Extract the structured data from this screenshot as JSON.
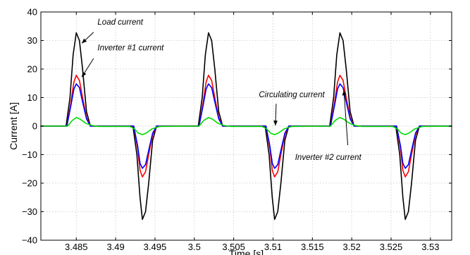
{
  "chart_data": {
    "type": "line",
    "xlabel": "Time [s]",
    "ylabel": "Current [A]",
    "xlim": [
      3.4805,
      3.5327
    ],
    "ylim": [
      -40,
      40
    ],
    "grid": true,
    "x_ticks": [
      3.485,
      3.49,
      3.495,
      3.5,
      3.505,
      3.51,
      3.515,
      3.52,
      3.525,
      3.53
    ],
    "x_tick_labels": [
      "3.485",
      "3.49",
      "3.495",
      "3.5",
      "3.505",
      "3.51",
      "3.515",
      "3.52",
      "3.525",
      "3.53"
    ],
    "y_ticks": [
      -40,
      -30,
      -20,
      -10,
      0,
      10,
      20,
      30,
      40
    ],
    "y_tick_labels": [
      "−40",
      "−30",
      "−20",
      "−10",
      "0",
      "10",
      "20",
      "30",
      "40"
    ],
    "series": [
      {
        "color": "#000000",
        "points": [
          [
            3.4805,
            0
          ],
          [
            3.4837,
            0
          ],
          [
            3.4842,
            10
          ],
          [
            3.4846,
            25
          ],
          [
            3.485,
            32.7
          ],
          [
            3.4854,
            30
          ],
          [
            3.4858,
            20
          ],
          [
            3.4863,
            5
          ],
          [
            3.4868,
            0
          ],
          [
            3.4922,
            0
          ],
          [
            3.4927,
            -10
          ],
          [
            3.4931,
            -25
          ],
          [
            3.4934,
            -32.7
          ],
          [
            3.4938,
            -30
          ],
          [
            3.4942,
            -20
          ],
          [
            3.4947,
            -5
          ],
          [
            3.4952,
            0
          ],
          [
            3.5005,
            0
          ],
          [
            3.501,
            10
          ],
          [
            3.5014,
            25
          ],
          [
            3.5018,
            32.7
          ],
          [
            3.5022,
            30
          ],
          [
            3.5026,
            20
          ],
          [
            3.5031,
            5
          ],
          [
            3.5036,
            0
          ],
          [
            3.509,
            0
          ],
          [
            3.5095,
            -10
          ],
          [
            3.5099,
            -25
          ],
          [
            3.5102,
            -32.7
          ],
          [
            3.5106,
            -30
          ],
          [
            3.511,
            -20
          ],
          [
            3.5115,
            -5
          ],
          [
            3.512,
            0
          ],
          [
            3.5172,
            0
          ],
          [
            3.5177,
            10
          ],
          [
            3.5181,
            25
          ],
          [
            3.5185,
            32.7
          ],
          [
            3.5189,
            30
          ],
          [
            3.5193,
            20
          ],
          [
            3.5198,
            5
          ],
          [
            3.5203,
            0
          ],
          [
            3.5256,
            0
          ],
          [
            3.5261,
            -10
          ],
          [
            3.5265,
            -25
          ],
          [
            3.5268,
            -32.7
          ],
          [
            3.5272,
            -30
          ],
          [
            3.5276,
            -20
          ],
          [
            3.5281,
            -5
          ],
          [
            3.5286,
            0
          ],
          [
            3.5327,
            0
          ]
        ]
      },
      {
        "color": "#ff0000",
        "points": [
          [
            3.4805,
            0
          ],
          [
            3.4838,
            0
          ],
          [
            3.4843,
            8
          ],
          [
            3.4847,
            15.5
          ],
          [
            3.485,
            17.8
          ],
          [
            3.4854,
            16
          ],
          [
            3.4858,
            10
          ],
          [
            3.4863,
            3
          ],
          [
            3.4868,
            0
          ],
          [
            3.4923,
            0
          ],
          [
            3.4928,
            -8
          ],
          [
            3.4931,
            -15.5
          ],
          [
            3.4934,
            -17.8
          ],
          [
            3.4938,
            -16
          ],
          [
            3.4942,
            -10
          ],
          [
            3.4947,
            -3
          ],
          [
            3.4952,
            0
          ],
          [
            3.5006,
            0
          ],
          [
            3.5011,
            8
          ],
          [
            3.5015,
            15.5
          ],
          [
            3.5018,
            17.8
          ],
          [
            3.5022,
            16
          ],
          [
            3.5026,
            10
          ],
          [
            3.5031,
            3
          ],
          [
            3.5036,
            0
          ],
          [
            3.5091,
            0
          ],
          [
            3.5096,
            -8
          ],
          [
            3.5099,
            -15.5
          ],
          [
            3.5102,
            -17.8
          ],
          [
            3.5106,
            -16
          ],
          [
            3.511,
            -10
          ],
          [
            3.5115,
            -3
          ],
          [
            3.512,
            0
          ],
          [
            3.5173,
            0
          ],
          [
            3.5178,
            8
          ],
          [
            3.5182,
            15.5
          ],
          [
            3.5185,
            17.8
          ],
          [
            3.5189,
            16
          ],
          [
            3.5193,
            10
          ],
          [
            3.5198,
            3
          ],
          [
            3.5203,
            0
          ],
          [
            3.5257,
            0
          ],
          [
            3.5262,
            -8
          ],
          [
            3.5265,
            -15.5
          ],
          [
            3.5268,
            -17.8
          ],
          [
            3.5272,
            -16
          ],
          [
            3.5276,
            -10
          ],
          [
            3.5281,
            -3
          ],
          [
            3.5286,
            0
          ],
          [
            3.5327,
            0
          ]
        ]
      },
      {
        "color": "#0000ff",
        "points": [
          [
            3.4805,
            0
          ],
          [
            3.4838,
            0
          ],
          [
            3.4843,
            7
          ],
          [
            3.4847,
            13
          ],
          [
            3.485,
            14.8
          ],
          [
            3.4854,
            13.5
          ],
          [
            3.4858,
            8.5
          ],
          [
            3.4863,
            2.5
          ],
          [
            3.4868,
            0
          ],
          [
            3.4923,
            0
          ],
          [
            3.4928,
            -7
          ],
          [
            3.4931,
            -13
          ],
          [
            3.4934,
            -14.8
          ],
          [
            3.4938,
            -13.5
          ],
          [
            3.4942,
            -8.5
          ],
          [
            3.4947,
            -2.5
          ],
          [
            3.4952,
            0
          ],
          [
            3.5006,
            0
          ],
          [
            3.5011,
            7
          ],
          [
            3.5015,
            13
          ],
          [
            3.5018,
            14.8
          ],
          [
            3.5022,
            13.5
          ],
          [
            3.5026,
            8.5
          ],
          [
            3.5031,
            2.5
          ],
          [
            3.5036,
            0
          ],
          [
            3.5091,
            0
          ],
          [
            3.5096,
            -7
          ],
          [
            3.5099,
            -13
          ],
          [
            3.5102,
            -14.8
          ],
          [
            3.5106,
            -13.5
          ],
          [
            3.511,
            -8.5
          ],
          [
            3.5115,
            -2.5
          ],
          [
            3.512,
            0
          ],
          [
            3.5173,
            0
          ],
          [
            3.5178,
            7
          ],
          [
            3.5182,
            13
          ],
          [
            3.5185,
            14.8
          ],
          [
            3.5189,
            13.5
          ],
          [
            3.5193,
            8.5
          ],
          [
            3.5198,
            2.5
          ],
          [
            3.5203,
            0
          ],
          [
            3.5257,
            0
          ],
          [
            3.5262,
            -7
          ],
          [
            3.5265,
            -13
          ],
          [
            3.5268,
            -14.8
          ],
          [
            3.5272,
            -13.5
          ],
          [
            3.5276,
            -8.5
          ],
          [
            3.5281,
            -2.5
          ],
          [
            3.5286,
            0
          ],
          [
            3.5327,
            0
          ]
        ]
      },
      {
        "color": "#00dd00",
        "points": [
          [
            3.4805,
            0
          ],
          [
            3.4839,
            0
          ],
          [
            3.4845,
            2
          ],
          [
            3.485,
            3
          ],
          [
            3.4855,
            2.4
          ],
          [
            3.4862,
            1
          ],
          [
            3.487,
            0.2
          ],
          [
            3.4878,
            -0.1
          ],
          [
            3.4918,
            -0.1
          ],
          [
            3.4924,
            -1
          ],
          [
            3.4929,
            -2.5
          ],
          [
            3.4934,
            -3
          ],
          [
            3.4939,
            -2.4
          ],
          [
            3.4946,
            -1
          ],
          [
            3.4956,
            -0.1
          ],
          [
            3.5006,
            0
          ],
          [
            3.5012,
            2
          ],
          [
            3.5018,
            3
          ],
          [
            3.5023,
            2.4
          ],
          [
            3.503,
            1
          ],
          [
            3.5038,
            0.2
          ],
          [
            3.5046,
            -0.1
          ],
          [
            3.5086,
            -0.1
          ],
          [
            3.5092,
            -1
          ],
          [
            3.5097,
            -2.5
          ],
          [
            3.5102,
            -3
          ],
          [
            3.5107,
            -2.4
          ],
          [
            3.5114,
            -1
          ],
          [
            3.5124,
            -0.1
          ],
          [
            3.5173,
            0
          ],
          [
            3.5179,
            2
          ],
          [
            3.5185,
            3
          ],
          [
            3.519,
            2.4
          ],
          [
            3.5197,
            1
          ],
          [
            3.5205,
            0.2
          ],
          [
            3.5213,
            -0.1
          ],
          [
            3.5252,
            -0.1
          ],
          [
            3.5258,
            -1
          ],
          [
            3.5263,
            -2.5
          ],
          [
            3.5268,
            -3
          ],
          [
            3.5273,
            -2.4
          ],
          [
            3.528,
            -1
          ],
          [
            3.529,
            -0.1
          ],
          [
            3.5327,
            0
          ]
        ]
      }
    ],
    "annotations": [
      {
        "text": "Load current",
        "x": 3.4877,
        "y": 35.6,
        "arrow_from": [
          3.4872,
          32.9
        ],
        "arrow_to": [
          3.4857,
          29
        ]
      },
      {
        "text": "Inverter #1 current",
        "x": 3.4877,
        "y": 26.6,
        "arrow_from": [
          3.4872,
          23.7
        ],
        "arrow_to": [
          3.4857,
          17.2
        ]
      },
      {
        "text": "Circulating current",
        "x": 3.5082,
        "y": 10.1,
        "arrow_from": [
          3.5104,
          7.8
        ],
        "arrow_to": [
          3.5103,
          0.2
        ]
      },
      {
        "text": "Inverter #2 current",
        "x": 3.5128,
        "y": -11.9,
        "arrow_from": [
          3.5195,
          -6.7
        ],
        "arrow_to": [
          3.519,
          12.5
        ]
      }
    ]
  }
}
